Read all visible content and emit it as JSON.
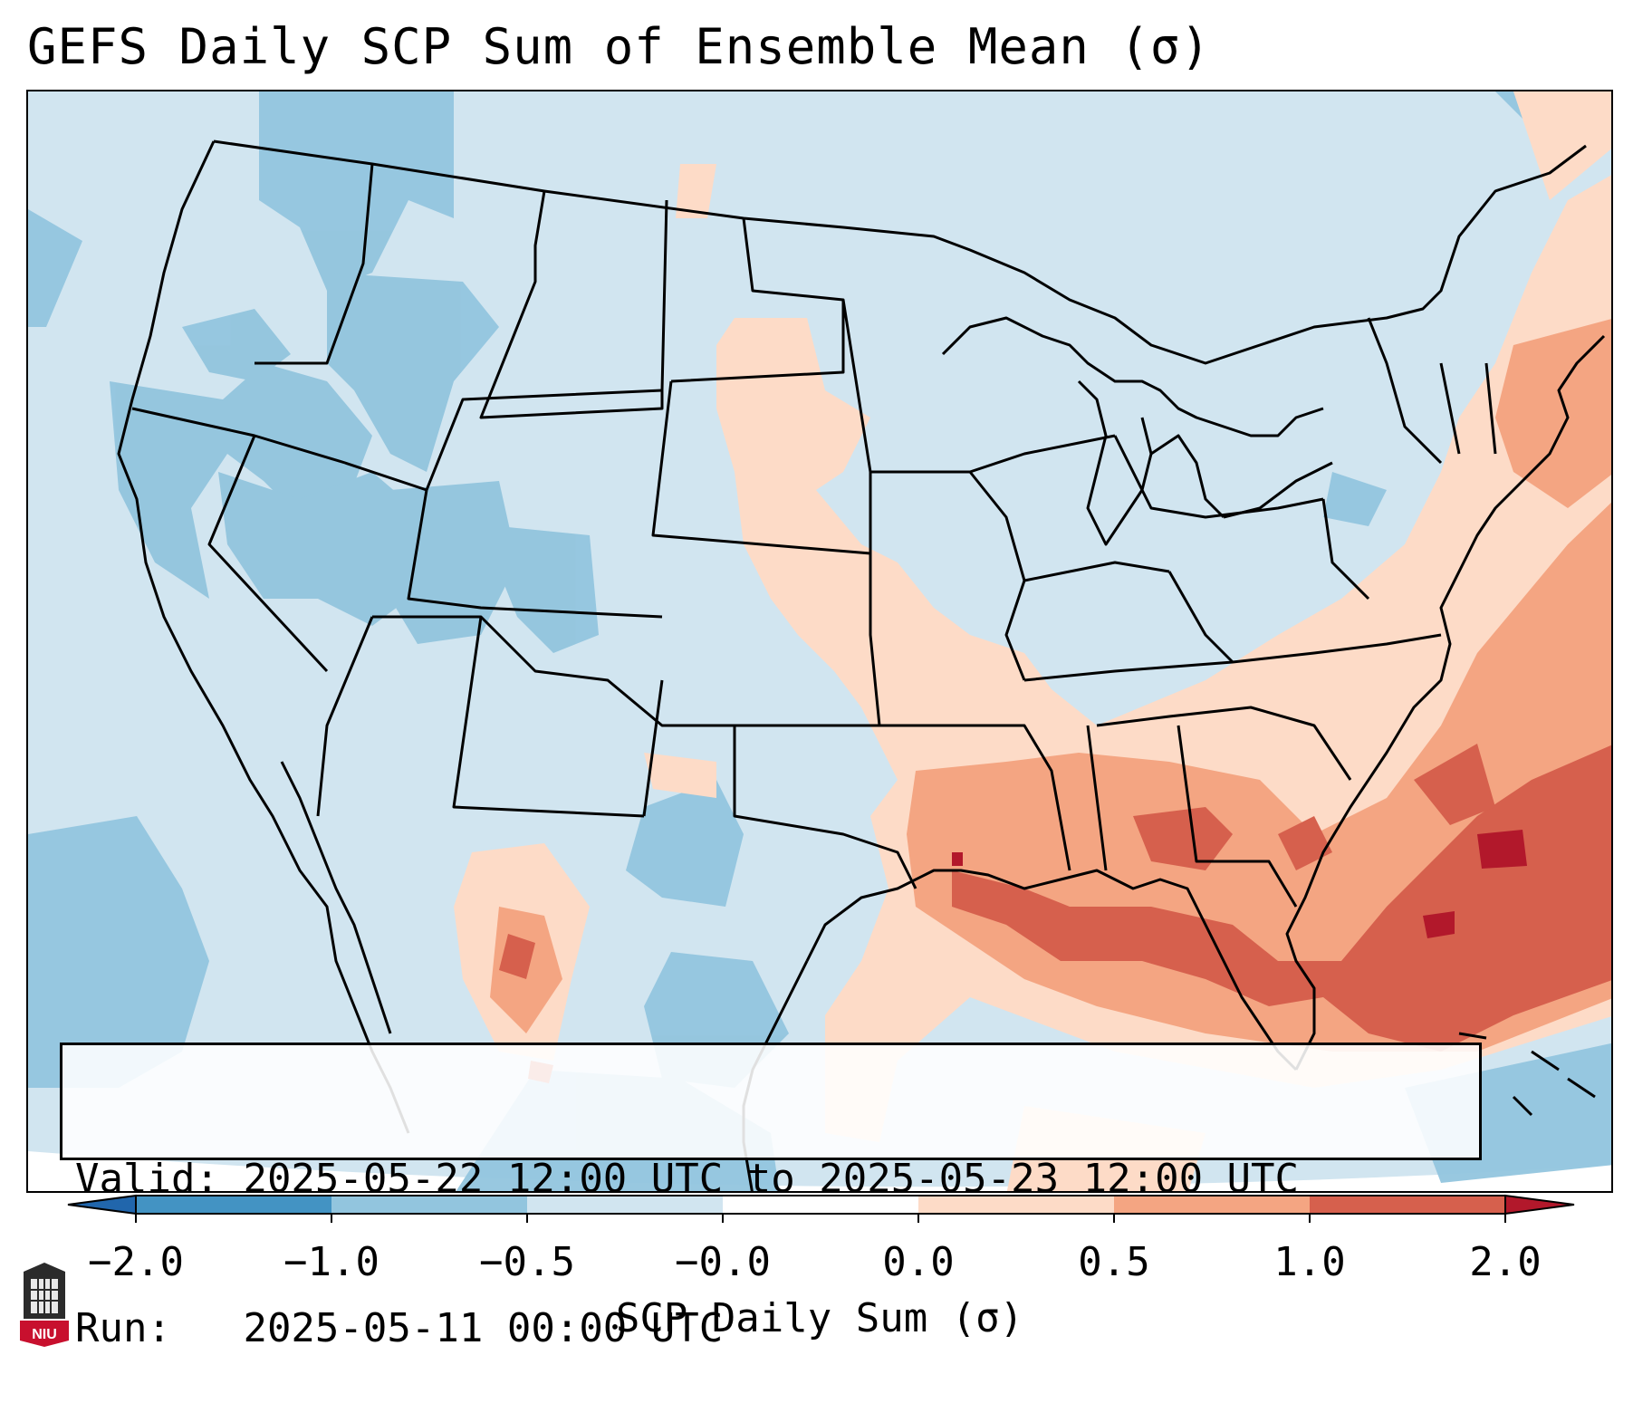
{
  "title": "GEFS Daily SCP Sum of Ensemble Mean (σ)",
  "info": {
    "valid_label": "Valid:",
    "valid_value": "2025-05-22 12:00 UTC to 2025-05-23 12:00 UTC",
    "run_label": "Run:  ",
    "run_value": "2025-05-11 00:00 UTC"
  },
  "colorbar": {
    "label": "SCP Daily Sum (σ)",
    "ticks": [
      "−2.0",
      "−1.0",
      "−0.5",
      "−0.0",
      "0.0",
      "0.5",
      "1.0",
      "2.0"
    ],
    "colors": {
      "lt_-2": "#2166ac",
      "-2_-1": "#4393c3",
      "-1_-0.5": "#92c5de",
      "-0.5_0": "#d1e5f0",
      "zero": "#ffffff",
      "0_0.5": "#fddbc7",
      "0.5_1": "#f4a582",
      "1_2": "#d6604d",
      "gt_2": "#b2182b"
    }
  },
  "map": {
    "projection": "Lambert conformal, CONUS",
    "fill_background": "#d1e5f0",
    "border_color": "#000000"
  },
  "logo": {
    "text": "NIU",
    "name": "Northern Illinois University"
  }
}
